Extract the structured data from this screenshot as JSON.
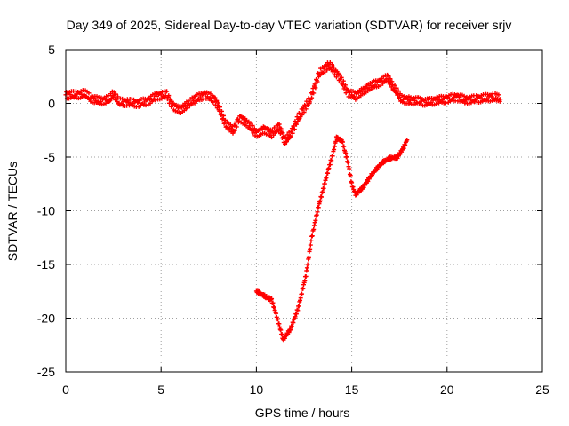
{
  "chart_data": {
    "type": "scatter",
    "title": "Day 349 of 2025, Sidereal Day-to-day VTEC variation (SDTVAR) for receiver srjv",
    "xlabel": "GPS time / hours",
    "ylabel": "SDTVAR / TECUs",
    "xlim": [
      0,
      25
    ],
    "ylim": [
      -25,
      5
    ],
    "xticks": [
      0,
      5,
      10,
      15,
      20,
      25
    ],
    "xtick_labels": [
      "0",
      "5",
      "10",
      "15",
      "20",
      "25"
    ],
    "yticks": [
      5,
      0,
      -5,
      -10,
      -15,
      -20,
      -25
    ],
    "ytick_labels": [
      "5",
      "0",
      "-5",
      "-10",
      "-15",
      "-20",
      "-25"
    ],
    "grid": true,
    "marker_color": "#ff0000",
    "series": [
      {
        "name": "main-band",
        "points": [
          [
            0.0,
            0.8
          ],
          [
            0.5,
            0.8
          ],
          [
            1.0,
            0.9
          ],
          [
            1.3,
            0.5
          ],
          [
            1.8,
            0.2
          ],
          [
            2.3,
            0.4
          ],
          [
            2.5,
            0.9
          ],
          [
            2.8,
            0.1
          ],
          [
            3.3,
            0.1
          ],
          [
            3.8,
            0.0
          ],
          [
            4.3,
            0.2
          ],
          [
            4.8,
            0.7
          ],
          [
            5.3,
            0.8
          ],
          [
            5.6,
            -0.2
          ],
          [
            6.0,
            -0.6
          ],
          [
            6.4,
            -0.1
          ],
          [
            6.8,
            0.4
          ],
          [
            7.3,
            0.8
          ],
          [
            7.8,
            0.4
          ],
          [
            8.0,
            -0.3
          ],
          [
            8.4,
            -2.0
          ],
          [
            8.8,
            -2.5
          ],
          [
            9.1,
            -1.3
          ],
          [
            9.5,
            -1.8
          ],
          [
            10.0,
            -2.8
          ],
          [
            10.4,
            -2.4
          ],
          [
            10.8,
            -2.8
          ],
          [
            11.2,
            -2.2
          ],
          [
            11.5,
            -3.6
          ],
          [
            11.8,
            -2.8
          ],
          [
            12.3,
            -1.0
          ],
          [
            12.8,
            0.3
          ],
          [
            13.3,
            2.8
          ],
          [
            13.8,
            3.6
          ],
          [
            14.3,
            2.6
          ],
          [
            14.8,
            1.0
          ],
          [
            15.2,
            0.7
          ],
          [
            15.6,
            1.2
          ],
          [
            16.0,
            1.6
          ],
          [
            16.5,
            2.0
          ],
          [
            16.9,
            2.4
          ],
          [
            17.2,
            1.5
          ],
          [
            17.6,
            0.4
          ],
          [
            18.0,
            0.3
          ],
          [
            18.5,
            0.2
          ],
          [
            19.0,
            0.1
          ],
          [
            19.5,
            0.3
          ],
          [
            20.0,
            0.4
          ],
          [
            20.5,
            0.6
          ],
          [
            21.0,
            0.3
          ],
          [
            21.5,
            0.4
          ],
          [
            22.0,
            0.5
          ],
          [
            22.5,
            0.6
          ],
          [
            22.8,
            0.4
          ]
        ]
      },
      {
        "name": "second-track",
        "points": [
          [
            10.0,
            -17.5
          ],
          [
            10.5,
            -18.0
          ],
          [
            10.8,
            -18.3
          ],
          [
            11.1,
            -20.0
          ],
          [
            11.4,
            -22.0
          ],
          [
            11.8,
            -21.0
          ],
          [
            12.2,
            -19.0
          ],
          [
            12.6,
            -16.0
          ],
          [
            12.9,
            -12.5
          ],
          [
            13.2,
            -10.0
          ],
          [
            13.5,
            -8.0
          ],
          [
            13.8,
            -6.0
          ],
          [
            14.0,
            -4.8
          ],
          [
            14.2,
            -3.2
          ],
          [
            14.5,
            -3.5
          ],
          [
            14.8,
            -5.5
          ],
          [
            15.0,
            -7.5
          ],
          [
            15.2,
            -8.5
          ],
          [
            15.6,
            -7.8
          ],
          [
            16.1,
            -6.5
          ],
          [
            16.6,
            -5.5
          ],
          [
            17.0,
            -5.1
          ],
          [
            17.4,
            -5.0
          ],
          [
            17.7,
            -4.2
          ],
          [
            17.9,
            -3.4
          ]
        ]
      }
    ]
  }
}
